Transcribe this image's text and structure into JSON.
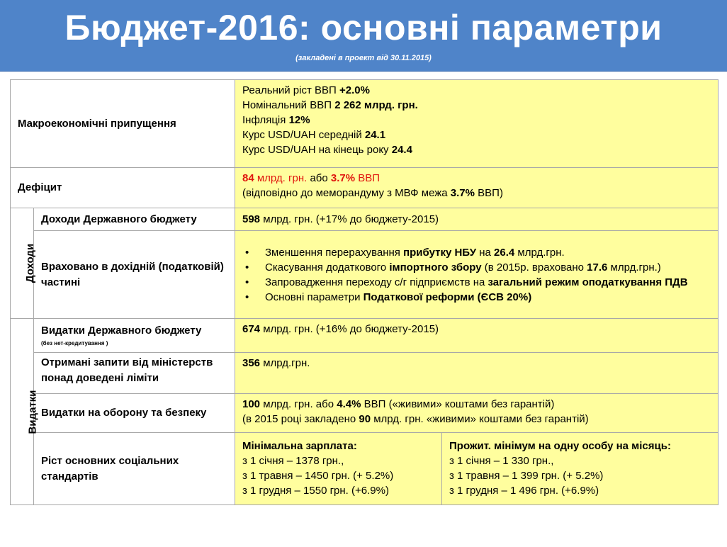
{
  "header": {
    "title": "Бюджет-2016: основні параметри",
    "subtitle": "(закладені в проект від 30.11.2015)"
  },
  "rows": {
    "macro": {
      "label": "Макроекономічні припущення",
      "lines": [
        {
          "text": "Реальний ріст ВВП ",
          "value": "+2.0%"
        },
        {
          "text": "Номінальний ВВП ",
          "value": "2 262 млрд. грн."
        },
        {
          "text": "Інфляція ",
          "value": "12%"
        },
        {
          "text": "Курс USD/UAH середній ",
          "value": "24.1"
        },
        {
          "text": "Курс USD/UAH на кінець року ",
          "value": "24.4"
        }
      ]
    },
    "deficit": {
      "label": "Дефіцит",
      "line1_value": "84",
      "line1_mid": " млрд. грн. ",
      "line1_or": "або ",
      "line1_pct": "3.7%",
      "line1_end": "  ВВП",
      "line2_start": "(відповідно до меморандуму з МВФ межа ",
      "line2_pct": "3.7%",
      "line2_end": " ВВП)"
    },
    "revenue_group": {
      "label": "Доходи"
    },
    "revenue_state": {
      "label": "Доходи Державного бюджету",
      "value": "598",
      "rest": " млрд. грн. (+17% до бюджету-2015)"
    },
    "revenue_included": {
      "label": "Враховано в дохідній (податковій) частині",
      "bullet": "•",
      "items": [
        {
          "a": "Зменшення перерахування ",
          "b": "прибутку НБУ",
          "c": " на ",
          "d": "26.4",
          "e": " млрд.грн."
        },
        {
          "a": "Скасування додаткового ",
          "b": "імпортного збору",
          "c": " (в 2015р. враховано ",
          "d": "17.6",
          "e": " млрд.грн.)"
        },
        {
          "a": "Запровадження переходу с/г підприємств на ",
          "b": "загальний режим оподаткування ПДВ",
          "c": "",
          "d": "",
          "e": ""
        },
        {
          "a": "Основні параметри ",
          "b": "Податкової реформи (ЄСВ 20%)",
          "c": "",
          "d": "",
          "e": ""
        }
      ]
    },
    "expense_group": {
      "label": "Видатки"
    },
    "expense_state": {
      "label": "Видатки Державного бюджету",
      "note": "(без нет-кредитування )",
      "value": "674",
      "rest": " млрд. грн. (+16% до бюджету-2015)"
    },
    "requests": {
      "label": "Отримані запити від міністерств понад доведені ліміти",
      "value": "356",
      "rest": " млрд.грн."
    },
    "defense": {
      "label": "Видатки на оборону та безпеку",
      "line1": [
        {
          "t": "100",
          "b": true
        },
        {
          "t": " млрд. грн. або ",
          "b": false
        },
        {
          "t": "4.4%",
          "b": true
        },
        {
          "t": " ВВП («живими» коштами без гарантій)",
          "b": false
        }
      ],
      "line2": [
        {
          "t": "(в 2015 році закладено ",
          "b": false
        },
        {
          "t": "90",
          "b": true
        },
        {
          "t": " млрд. грн. «живими» коштами без гарантій)",
          "b": false
        }
      ]
    },
    "social": {
      "label": "Ріст основних соціальних стандартів",
      "min_wage": {
        "title": "Мінімальна зарплата:",
        "lines": [
          "з 1 січня – 1378 грн.,",
          "з 1 травня – 1450 грн. (+ 5.2%)",
          "з 1 грудня – 1550 грн. (+6.9%)"
        ]
      },
      "subsistence": {
        "title": "Прожит. мінімум на одну особу на місяць:",
        "lines": [
          "з 1 січня – 1 330 грн.,",
          "з 1 травня – 1 399 грн. (+ 5.2%)",
          "з 1 грудня – 1 496 грн. (+6.9%)"
        ]
      }
    }
  }
}
